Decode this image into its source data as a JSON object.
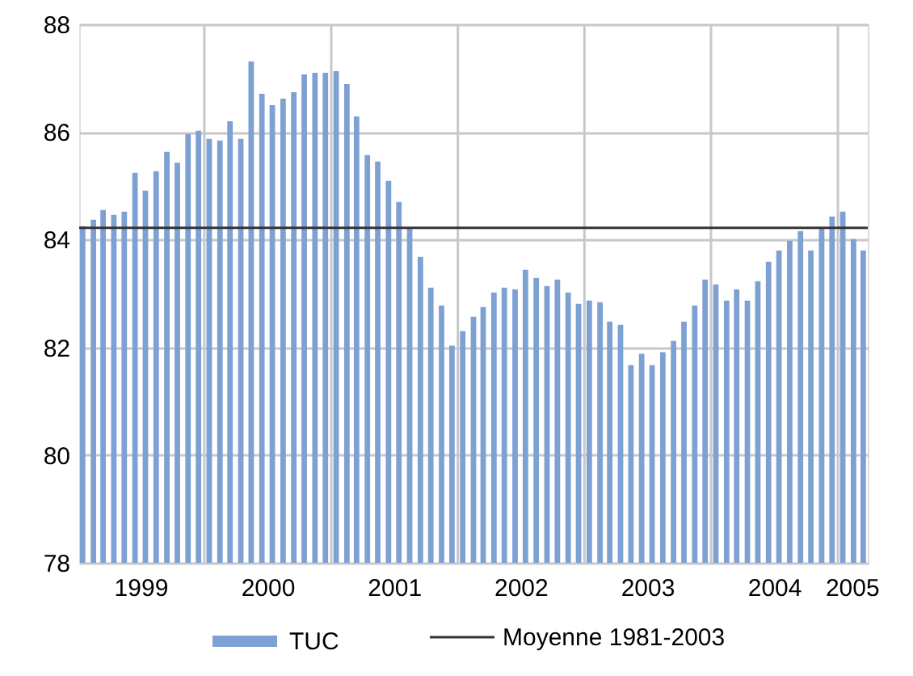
{
  "chart_data": {
    "type": "bar",
    "x": [
      "1999-01-15",
      "1999-02-15",
      "1999-03-15",
      "1999-04-15",
      "1999-05-15",
      "1999-06-15",
      "1999-07-15",
      "1999-08-15",
      "1999-09-15",
      "1999-10-15",
      "1999-11-15",
      "1999-12-15",
      "2000-01-15",
      "2000-02-15",
      "2000-03-15",
      "2000-04-15",
      "2000-05-15",
      "2000-06-15",
      "2000-07-15",
      "2000-08-15",
      "2000-09-15",
      "2000-10-15",
      "2000-11-15",
      "2000-12-15",
      "2001-01-15",
      "2001-02-15",
      "2001-03-15",
      "2001-04-15",
      "2001-05-15",
      "2001-06-15",
      "2001-07-15",
      "2001-08-15",
      "2001-09-15",
      "2001-10-15",
      "2001-11-15",
      "2001-12-15",
      "2002-01-15",
      "2002-02-15",
      "2002-03-15",
      "2002-04-15",
      "2002-05-15",
      "2002-06-15",
      "2002-07-15",
      "2002-08-15",
      "2002-09-15",
      "2002-10-15",
      "2002-11-15",
      "2002-12-15",
      "2003-01-15",
      "2003-02-15",
      "2003-03-15",
      "2003-04-15",
      "2003-05-15",
      "2003-06-15",
      "2003-07-15",
      "2003-08-15",
      "2003-09-15",
      "2003-10-15",
      "2003-11-15",
      "2003-12-15",
      "2004-01-15",
      "2004-02-15",
      "2004-03-15",
      "2004-04-15",
      "2004-05-15",
      "2004-06-15",
      "2004-07-15",
      "2004-08-15",
      "2004-09-15",
      "2004-10-15",
      "2004-11-15",
      "2004-12-15",
      "2005-01-15",
      "2005-02-15",
      "2005-03-15"
    ],
    "series": [
      {
        "name": "TUC",
        "color": "#7ea1d3",
        "values": [
          84.25,
          84.37,
          84.55,
          84.46,
          84.52,
          85.24,
          84.91,
          85.27,
          85.63,
          85.43,
          85.96,
          86.02,
          85.87,
          85.84,
          86.2,
          85.87,
          87.31,
          86.71,
          86.5,
          86.62,
          86.74,
          87.07,
          87.1,
          87.1,
          87.13,
          86.89,
          86.29,
          85.57,
          85.45,
          85.09,
          84.7,
          84.2,
          83.68,
          83.11,
          82.78,
          82.03,
          82.3,
          82.57,
          82.75,
          83.02,
          83.11,
          83.08,
          83.44,
          83.29,
          83.14,
          83.26,
          83.02,
          82.81,
          82.87,
          82.84,
          82.48,
          82.42,
          81.67,
          81.88,
          81.67,
          81.91,
          82.12,
          82.48,
          82.78,
          83.26,
          83.17,
          82.87,
          83.08,
          82.87,
          83.23,
          83.59,
          83.8,
          83.98,
          84.16,
          83.8,
          84.2,
          84.43,
          84.52,
          84.01,
          83.8
        ]
      }
    ],
    "ref_lines": [
      {
        "axis": "y",
        "value": 84.22,
        "label": "Moyenne 1981-2003",
        "color": "#333333"
      }
    ],
    "xlim": [
      "1999-01-05",
      "2005-03-28"
    ],
    "xticks": [
      {
        "value": "1999-07-01",
        "label": "1999"
      },
      {
        "value": "2000-01-01",
        "label": null
      },
      {
        "value": "2000-07-01",
        "label": "2000"
      },
      {
        "value": "2001-01-01",
        "label": null
      },
      {
        "value": "2001-07-01",
        "label": "2001"
      },
      {
        "value": "2002-01-01",
        "label": null
      },
      {
        "value": "2002-07-01",
        "label": "2002"
      },
      {
        "value": "2003-01-01",
        "label": null
      },
      {
        "value": "2003-07-01",
        "label": "2003"
      },
      {
        "value": "2004-01-01",
        "label": null
      },
      {
        "value": "2004-07-01",
        "label": "2004"
      },
      {
        "value": "2005-01-01",
        "label": null
      },
      {
        "value": "2005-02-10",
        "label": "2005"
      }
    ],
    "ylim": [
      78,
      88
    ],
    "yticks": [
      78,
      80,
      82,
      84,
      86,
      88
    ],
    "grid": true,
    "legend": "bottom"
  }
}
